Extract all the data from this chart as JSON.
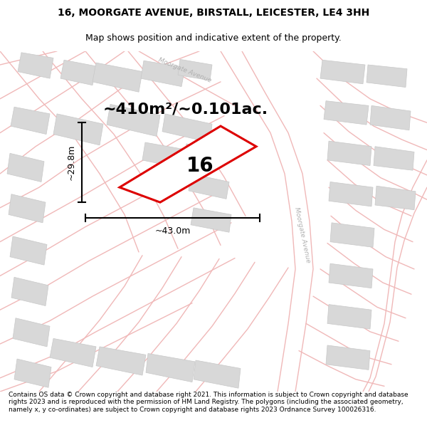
{
  "title_line1": "16, MOORGATE AVENUE, BIRSTALL, LEICESTER, LE4 3HH",
  "title_line2": "Map shows position and indicative extent of the property.",
  "area_text": "~410m²/~0.101ac.",
  "label_number": "16",
  "dim_vertical": "~29.8m",
  "dim_horizontal": "~43.0m",
  "footer_text": "Contains OS data © Crown copyright and database right 2021. This information is subject to Crown copyright and database rights 2023 and is reproduced with the permission of HM Land Registry. The polygons (including the associated geometry, namely x, y co-ordinates) are subject to Crown copyright and database rights 2023 Ordnance Survey 100026316.",
  "bg_color": "#ffffff",
  "map_bg": "#f7f7f7",
  "road_color": "#f0b8b8",
  "road_color2": "#e8a0a0",
  "block_color": "#d8d8d8",
  "block_edge": "#c8c8c8",
  "property_edge": "#dd0000",
  "dim_line_color": "#000000",
  "street_label_color": "#b0b0b0",
  "title_fontsize": 10,
  "subtitle_fontsize": 9,
  "area_fontsize": 16,
  "number_fontsize": 20,
  "dim_fontsize": 9,
  "footer_fontsize": 6.5
}
